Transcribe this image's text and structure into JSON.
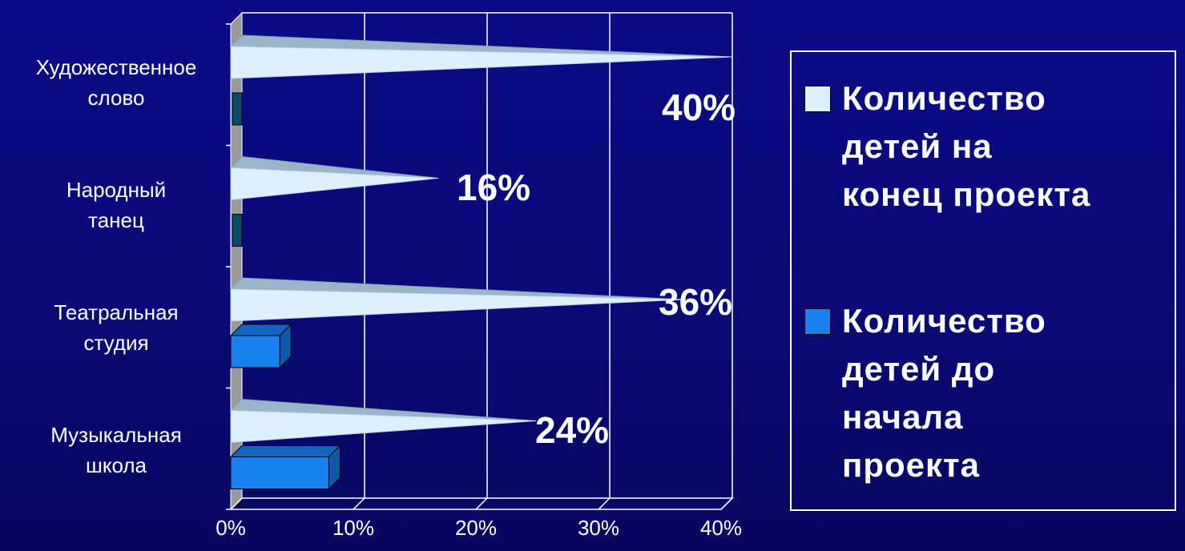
{
  "chart_data": {
    "type": "bar",
    "orientation": "horizontal",
    "categories": [
      "Художественное слово",
      "Народный танец",
      "Театральная студия",
      "Музыкальная школа"
    ],
    "category_lines": [
      [
        "Художественное",
        "слово"
      ],
      [
        "Народный",
        "танец"
      ],
      [
        "Театральная",
        "студия"
      ],
      [
        "Музыкальная",
        "школа"
      ]
    ],
    "series": [
      {
        "name": "Количество детей на конец проекта",
        "values": [
          40,
          16,
          36,
          24
        ],
        "color": "#dcf0ff",
        "shape": "cone"
      },
      {
        "name": "Количество детей до начала проекта",
        "values": [
          0,
          0,
          4,
          8
        ],
        "color": "#1a82f0",
        "shape": "box"
      }
    ],
    "data_labels": [
      "40%",
      "16%",
      "36%",
      "24%"
    ],
    "x_ticks": [
      "0%",
      "10%",
      "20%",
      "30%",
      "40%"
    ],
    "xlim": [
      0,
      40
    ],
    "grid": true,
    "legend_position": "right"
  },
  "legend": {
    "entries": [
      {
        "text": "Количество\nдетей на\nконец проекта",
        "color": "#dcf0ff"
      },
      {
        "text": "Количество\nдетей до\nначала\nпроекта",
        "color": "#1a82f0"
      }
    ]
  },
  "colors": {
    "background": "#0a0a78",
    "gridline": "#ffffff",
    "wall_side": "#9a9a9a",
    "cone": "#dcf0ff",
    "box": "#1a82f0",
    "box_side": "#0f5aa8"
  }
}
